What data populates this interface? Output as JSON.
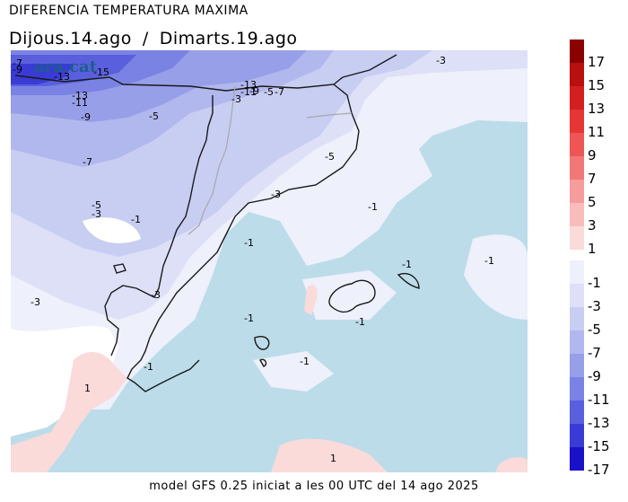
{
  "header": {
    "title": "DIFERENCIA TEMPERATURA MAXIMA",
    "date_from": "Dijous.14.ago",
    "separator": "/",
    "date_to": "Dimarts.19.ago"
  },
  "logo": {
    "text": "ara.cat"
  },
  "footer": {
    "text": "model GFS 0.25 iniciat a les 00 UTC del 14 ago 2025"
  },
  "legend": {
    "entries": [
      {
        "label": "17",
        "color": "#8b0000"
      },
      {
        "label": "15",
        "color": "#b80f0f"
      },
      {
        "label": "13",
        "color": "#d41f1f"
      },
      {
        "label": "11",
        "color": "#e53535"
      },
      {
        "label": "9",
        "color": "#ee5555"
      },
      {
        "label": "7",
        "color": "#f27878"
      },
      {
        "label": "5",
        "color": "#f59c9c"
      },
      {
        "label": "3",
        "color": "#f8bcbc"
      },
      {
        "label": "1",
        "color": "#fbdada"
      },
      {
        "label": "-1",
        "color": "#eef0fb"
      },
      {
        "label": "-3",
        "color": "#dde0f7"
      },
      {
        "label": "-5",
        "color": "#c8cdf2"
      },
      {
        "label": "-7",
        "color": "#b1b8ee"
      },
      {
        "label": "-9",
        "color": "#979fe9"
      },
      {
        "label": "-11",
        "color": "#7a82e3"
      },
      {
        "label": "-13",
        "color": "#5a5fdd"
      },
      {
        "label": "-15",
        "color": "#3a3ad5"
      },
      {
        "label": "-17",
        "color": "#1a10c8"
      }
    ]
  },
  "map_labels": [
    {
      "text": "-7"
    },
    {
      "text": "-9"
    },
    {
      "text": "-13"
    },
    {
      "text": "-15"
    },
    {
      "text": "-13"
    },
    {
      "text": "-11"
    },
    {
      "text": "-9"
    },
    {
      "text": "-5"
    },
    {
      "text": "-7"
    },
    {
      "text": "-5"
    },
    {
      "text": "-3"
    },
    {
      "text": "-1"
    },
    {
      "text": "-3"
    },
    {
      "text": "-3"
    },
    {
      "text": "-13"
    },
    {
      "text": "-11"
    },
    {
      "text": "-9"
    },
    {
      "text": "-5"
    },
    {
      "text": "-7"
    },
    {
      "text": "-3"
    },
    {
      "text": "-3"
    },
    {
      "text": "-5"
    },
    {
      "text": "-3"
    },
    {
      "text": "-1"
    },
    {
      "text": "-1"
    },
    {
      "text": "-1"
    },
    {
      "text": "-1"
    },
    {
      "text": "-1"
    },
    {
      "text": "-1"
    },
    {
      "text": "-1"
    },
    {
      "text": "-1"
    },
    {
      "text": "1"
    },
    {
      "text": "1"
    }
  ]
}
